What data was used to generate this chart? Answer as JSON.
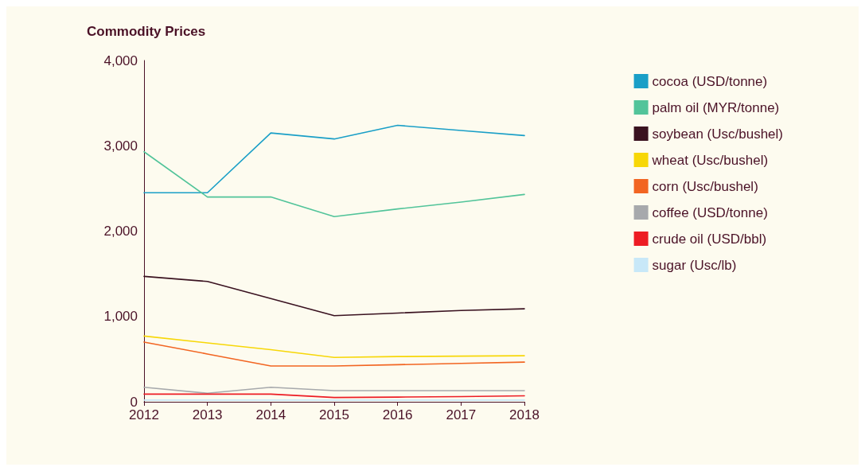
{
  "chart_data": {
    "type": "line",
    "title": "Commodity Prices",
    "x": [
      2012,
      2013,
      2014,
      2015,
      2016,
      2017,
      2018
    ],
    "xlim": [
      2012,
      2018
    ],
    "xticks": [
      2012,
      2013,
      2014,
      2015,
      2016,
      2017,
      2018
    ],
    "ylim": [
      0,
      4000
    ],
    "yticks": [
      {
        "value": 0,
        "label": "0"
      },
      {
        "value": 1000,
        "label": "1,000"
      },
      {
        "value": 2000,
        "label": "2,000"
      },
      {
        "value": 3000,
        "label": "3,000"
      },
      {
        "value": 4000,
        "label": "4,000"
      }
    ],
    "grid": false,
    "legend": "right",
    "marker": "none",
    "line_style": "solid",
    "series": [
      {
        "name": "cocoa (USD/tonne)",
        "color": "#1a9fc7",
        "values": [
          2450,
          2450,
          3150,
          3080,
          3240,
          3180,
          3120
        ]
      },
      {
        "name": "palm oil (MYR/tonne)",
        "color": "#52c49a",
        "values": [
          2930,
          2400,
          2400,
          2170,
          2260,
          2340,
          2430
        ]
      },
      {
        "name": "soybean (Usc/bushel)",
        "color": "#3a1220",
        "values": [
          1470,
          1410,
          1210,
          1010,
          1040,
          1070,
          1090
        ]
      },
      {
        "name": "wheat (Usc/bushel)",
        "color": "#f7d708",
        "values": [
          770,
          690,
          610,
          520,
          530,
          535,
          540
        ]
      },
      {
        "name": "corn (Usc/bushel)",
        "color": "#f26522",
        "values": [
          700,
          560,
          420,
          420,
          435,
          450,
          465
        ]
      },
      {
        "name": "coffee (USD/tonne)",
        "color": "#a7a9ac",
        "values": [
          170,
          100,
          170,
          130,
          130,
          130,
          130
        ]
      },
      {
        "name": "crude oil (USD/bbl)",
        "color": "#ed1c24",
        "values": [
          90,
          90,
          90,
          50,
          55,
          60,
          70
        ]
      },
      {
        "name": "sugar (Usc/lb)",
        "color": "#c8e8f8",
        "values": [
          20,
          20,
          20,
          20,
          20,
          20,
          20
        ]
      }
    ]
  }
}
